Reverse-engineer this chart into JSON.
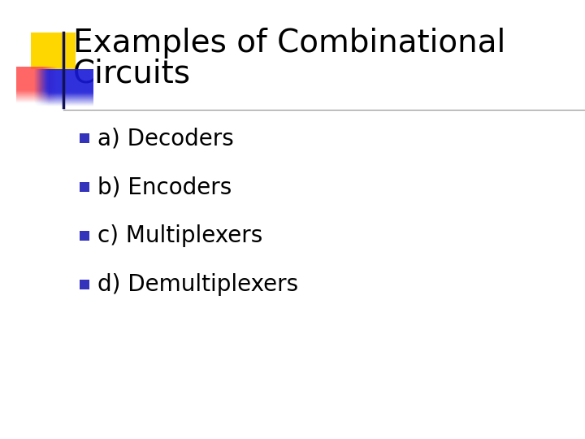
{
  "title_line1": "Examples of Combinational",
  "title_line2": "Circuits",
  "bullet_items": [
    "a) Decoders",
    "b) Encoders",
    "c) Multiplexers",
    "d) Demultiplexers"
  ],
  "background_color": "#ffffff",
  "title_color": "#000000",
  "bullet_text_color": "#000000",
  "bullet_square_color": "#3333BB",
  "title_font_size": 28,
  "bullet_font_size": 20,
  "divider_line_color": "#999999",
  "logo_yellow_color": "#FFD700",
  "logo_red_color": "#FF4444",
  "logo_blue_color": "#2222CC",
  "logo_dark_color": "#111155"
}
